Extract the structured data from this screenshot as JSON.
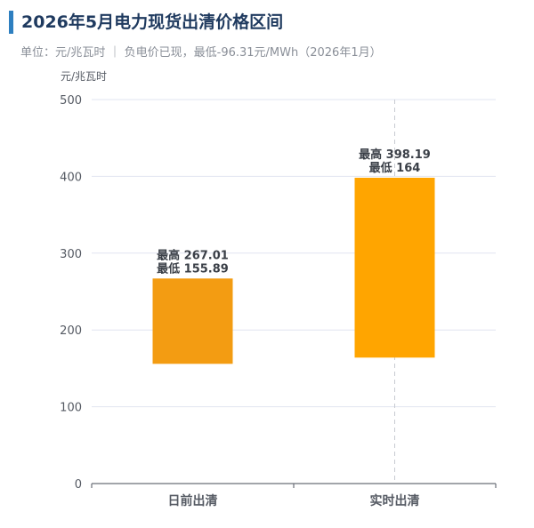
{
  "header": {
    "title": "2026年5月电力现货出清价格区间",
    "subtitle": "单位：元/兆瓦时 ｜ 负电价已现，最低-96.31元/MWh（2026年1月）"
  },
  "colors": {
    "title_bar": "#2e7fc0",
    "bar_dayahead": "#f39c12",
    "bar_realtime": "#ffa500",
    "grid": "#e1e4f0",
    "crosshair": "#c7cad1"
  },
  "chart_data": {
    "type": "bar",
    "subtype": "floating-range",
    "ylabel": "元/兆瓦时",
    "ylim": [
      0,
      500
    ],
    "yticks": [
      0,
      100,
      200,
      300,
      400,
      500
    ],
    "categories": [
      "日前出清",
      "实时出清"
    ],
    "low": [
      155.89,
      164
    ],
    "high": [
      267.01,
      398.19
    ],
    "data_labels": [
      [
        "最高 267.01",
        "最低 155.89"
      ],
      [
        "最高 398.19",
        "最低 164"
      ]
    ],
    "grid": true,
    "legend": "none"
  }
}
